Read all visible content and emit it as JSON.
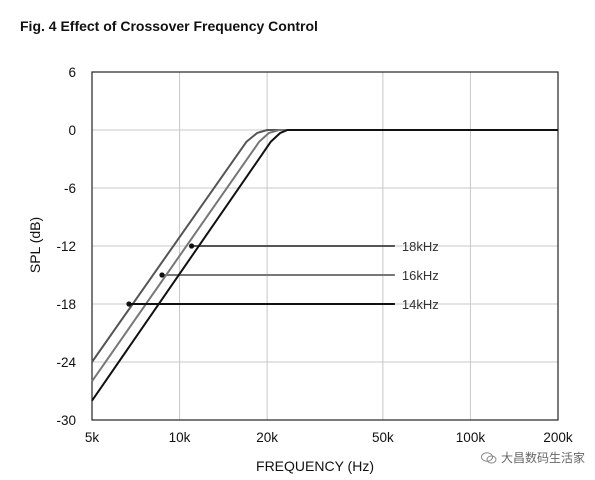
{
  "figure": {
    "title": "Fig. 4 Effect of Crossover Frequency Control"
  },
  "watermark": {
    "text": "大昌数码生活家"
  },
  "chart_data": {
    "type": "line",
    "title": "Fig. 4 Effect of Crossover Frequency Control",
    "xlabel": "FREQUENCY (Hz)",
    "ylabel": "SPL (dB)",
    "xscale": "log",
    "xlim": [
      5000,
      200000
    ],
    "ylim": [
      -30,
      6
    ],
    "xticks": [
      5000,
      10000,
      20000,
      50000,
      100000,
      200000
    ],
    "xtick_labels": [
      "5k",
      "10k",
      "20k",
      "50k",
      "100k",
      "200k"
    ],
    "yticks": [
      6,
      0,
      -6,
      -12,
      -18,
      -24,
      -30
    ],
    "ytick_labels": [
      "6",
      "0",
      "-6",
      "-12",
      "-18",
      "-24",
      "-30"
    ],
    "grid": true,
    "series": [
      {
        "name": "18kHz",
        "color": "#555555",
        "points": [
          [
            5000,
            -24
          ],
          [
            17000,
            -1.2
          ],
          [
            18500,
            -0.3
          ],
          [
            20000,
            0
          ],
          [
            200000,
            0
          ]
        ],
        "marker": [
          11000,
          -12
        ],
        "label_line_end": 50000
      },
      {
        "name": "16kHz",
        "color": "#777777",
        "points": [
          [
            5000,
            -26
          ],
          [
            18800,
            -1.2
          ],
          [
            20300,
            -0.3
          ],
          [
            22000,
            0
          ],
          [
            200000,
            0
          ]
        ],
        "marker": [
          8700,
          -15
        ],
        "label_line_end": 50000
      },
      {
        "name": "14kHz",
        "color": "#111111",
        "points": [
          [
            5000,
            -28
          ],
          [
            20600,
            -1.2
          ],
          [
            22200,
            -0.3
          ],
          [
            23500,
            0
          ],
          [
            200000,
            0
          ]
        ],
        "marker": [
          6700,
          -18
        ],
        "label_line_end": 50000
      }
    ]
  }
}
